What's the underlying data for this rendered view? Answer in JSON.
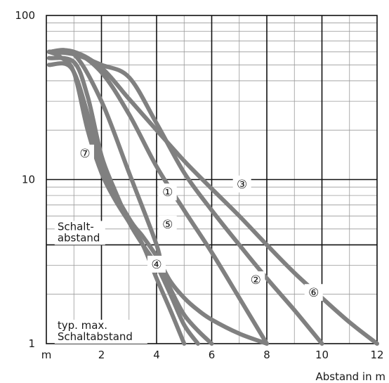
{
  "chart_data": {
    "type": "line",
    "xlabel": "Abstand in m",
    "ylabel": "",
    "xlim": [
      0,
      12
    ],
    "ylim": [
      1,
      100
    ],
    "yscale": "log",
    "grid": true,
    "x_ticks": [
      {
        "value": 0,
        "label": "m"
      },
      {
        "value": 2,
        "label": "2"
      },
      {
        "value": 4,
        "label": "4"
      },
      {
        "value": 6,
        "label": "6"
      },
      {
        "value": 8,
        "label": "8"
      },
      {
        "value": 10,
        "label": "10"
      },
      {
        "value": 12,
        "label": "12"
      }
    ],
    "y_ticks": [
      {
        "value": 1,
        "label": "1"
      },
      {
        "value": 10,
        "label": "10"
      },
      {
        "value": 100,
        "label": "100"
      }
    ],
    "series": [
      {
        "name": "①",
        "label_at": [
          4.4,
          8.4
        ],
        "x": [
          0.1,
          1.0,
          2.0,
          3.0,
          4.0,
          4.2,
          4.6,
          5.0,
          5.5,
          6.0
        ],
        "y": [
          60,
          58,
          30,
          11,
          4,
          2.8,
          2.0,
          1.5,
          1.2,
          1.0
        ]
      },
      {
        "name": "②",
        "label_at": [
          7.6,
          2.45
        ],
        "x": [
          0.1,
          1.0,
          2.0,
          3.0,
          4.0,
          5.0,
          6.0,
          7.0,
          8.0
        ],
        "y": [
          60,
          60,
          45,
          25,
          12,
          6.5,
          3.6,
          1.9,
          1.0
        ]
      },
      {
        "name": "③",
        "label_at": [
          7.1,
          9.4
        ],
        "x": [
          0.1,
          1.0,
          2.0,
          3.0,
          4.0,
          5.0,
          6.0,
          7.0,
          8.0,
          9.0,
          10.0,
          11.0,
          12.0
        ],
        "y": [
          60,
          60,
          48,
          31,
          20,
          13,
          8.8,
          6.0,
          4.0,
          2.7,
          1.9,
          1.35,
          1.0
        ]
      },
      {
        "name": "④",
        "label_at": [
          4.0,
          3.05
        ],
        "x": [
          0.1,
          0.9,
          1.5,
          2.0,
          3.0,
          3.5,
          4.0,
          4.5,
          5.0,
          5.5,
          6.0,
          7.0,
          8.0
        ],
        "y": [
          50,
          48,
          25,
          12,
          5.8,
          4.5,
          3.4,
          2.4,
          1.9,
          1.6,
          1.4,
          1.15,
          1.0
        ]
      },
      {
        "name": "⑤",
        "label_at": [
          4.4,
          5.35
        ],
        "x": [
          0.1,
          1.0,
          1.5,
          2.0,
          2.5,
          3.0,
          3.5,
          4.0,
          4.5,
          5.0,
          5.5
        ],
        "y": [
          55,
          52,
          32,
          14,
          8.5,
          5.5,
          4.0,
          3.0,
          2.0,
          1.3,
          1.0
        ]
      },
      {
        "name": "⑥",
        "label_at": [
          9.7,
          2.05
        ],
        "x": [
          0.1,
          1.0,
          2.0,
          3.0,
          4.0,
          5.0,
          6.0,
          7.0,
          8.0,
          9.0,
          10.0
        ],
        "y": [
          60,
          58,
          50,
          42,
          22,
          11,
          6.5,
          4.0,
          2.5,
          1.6,
          1.0
        ]
      },
      {
        "name": "⑦",
        "label_at": [
          1.4,
          14.5
        ],
        "x": [
          0.1,
          0.5,
          1.0,
          1.5,
          2.0,
          2.5,
          3.0,
          3.5,
          4.0,
          4.5,
          5.0
        ],
        "y": [
          60,
          56,
          45,
          20,
          11,
          7.5,
          5.5,
          4.0,
          2.5,
          1.6,
          1.0
        ]
      }
    ],
    "annotations": [
      {
        "lines": [
          "Schalt-",
          "abstand"
        ],
        "at": [
          0.25,
          4.0
        ]
      },
      {
        "lines": [
          "typ. max.",
          "Schaltabstand"
        ],
        "at": [
          0.25,
          1.0
        ]
      }
    ]
  }
}
